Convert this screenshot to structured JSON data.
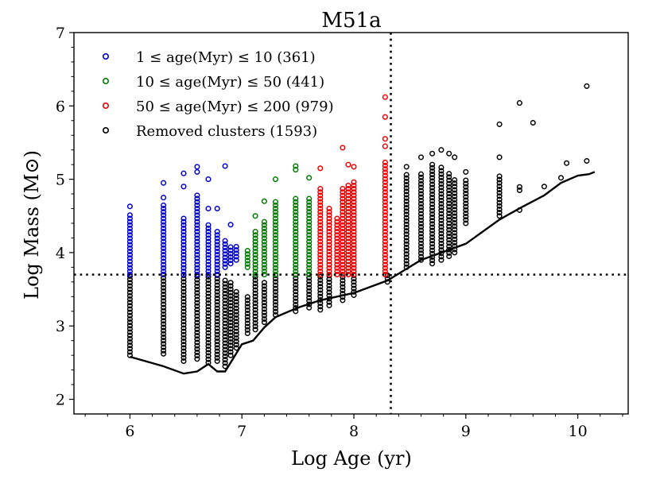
{
  "chart_data": {
    "type": "scatter",
    "title": "M51a",
    "xlabel": "Log Age (yr)",
    "ylabel": "Log Mass (M⊙)",
    "xlim": [
      5.5,
      10.45
    ],
    "ylim": [
      1.8,
      7.0
    ],
    "xticks": [
      6,
      7,
      8,
      9,
      10
    ],
    "xtick_labels": [
      "6",
      "7",
      "8",
      "9",
      "10"
    ],
    "yticks": [
      2,
      3,
      4,
      5,
      6,
      7
    ],
    "ytick_labels": [
      "2",
      "3",
      "4",
      "5",
      "6",
      "7"
    ],
    "legend_position": "top-left",
    "mass_cut": 3.7,
    "age_cut": 8.33,
    "series": [
      {
        "name": "1 ≤ age(Myr) ≤ 10 (361)",
        "color": "#0000cc",
        "columns": [
          {
            "x": 6.0,
            "ymin": 3.7,
            "ymax": 4.55,
            "top": [
              4.63
            ]
          },
          {
            "x": 6.3,
            "ymin": 3.7,
            "ymax": 4.65,
            "top": [
              4.75,
              4.95
            ]
          },
          {
            "x": 6.48,
            "ymin": 3.7,
            "ymax": 4.5,
            "top": [
              4.9,
              5.08
            ]
          },
          {
            "x": 6.6,
            "ymin": 3.7,
            "ymax": 4.8,
            "top": [
              5.1,
              5.17
            ]
          },
          {
            "x": 6.7,
            "ymin": 3.7,
            "ymax": 4.4,
            "top": [
              4.6,
              5.0
            ]
          },
          {
            "x": 6.78,
            "ymin": 3.7,
            "ymax": 4.3,
            "top": [
              4.6
            ]
          },
          {
            "x": 6.85,
            "ymin": 3.8,
            "ymax": 4.2,
            "top": [
              5.18
            ]
          },
          {
            "x": 6.9,
            "ymin": 3.85,
            "ymax": 4.1,
            "top": [
              4.38
            ]
          },
          {
            "x": 6.95,
            "ymin": 3.9,
            "ymax": 4.1,
            "top": []
          }
        ]
      },
      {
        "name": "10 ≤ age(Myr) ≤ 50 (441)",
        "color": "#007a00",
        "columns": [
          {
            "x": 7.05,
            "ymin": 3.8,
            "ymax": 4.05,
            "top": []
          },
          {
            "x": 7.12,
            "ymin": 3.7,
            "ymax": 4.3,
            "top": [
              4.5
            ]
          },
          {
            "x": 7.2,
            "ymin": 3.7,
            "ymax": 4.45,
            "top": [
              4.7
            ]
          },
          {
            "x": 7.3,
            "ymin": 3.7,
            "ymax": 4.7,
            "top": [
              5.0
            ]
          },
          {
            "x": 7.48,
            "ymin": 3.7,
            "ymax": 4.75,
            "top": [
              5.13,
              5.18
            ]
          },
          {
            "x": 7.6,
            "ymin": 3.7,
            "ymax": 4.75,
            "top": [
              5.02
            ]
          }
        ]
      },
      {
        "name": "50 ≤ age(Myr) ≤ 200 (979)",
        "color": "#ee0000",
        "columns": [
          {
            "x": 7.7,
            "ymin": 3.7,
            "ymax": 4.9,
            "top": [
              5.15
            ]
          },
          {
            "x": 7.78,
            "ymin": 3.7,
            "ymax": 4.6,
            "top": []
          },
          {
            "x": 7.85,
            "ymin": 3.7,
            "ymax": 4.5,
            "top": []
          },
          {
            "x": 7.9,
            "ymin": 3.7,
            "ymax": 4.9,
            "top": [
              5.43
            ]
          },
          {
            "x": 7.95,
            "ymin": 3.7,
            "ymax": 4.95,
            "top": [
              5.2
            ]
          },
          {
            "x": 8.0,
            "ymin": 3.7,
            "ymax": 5.0,
            "top": [
              5.17
            ]
          },
          {
            "x": 8.28,
            "ymin": 3.7,
            "ymax": 5.25,
            "top": [
              5.45,
              5.55,
              5.85,
              6.12
            ]
          }
        ]
      },
      {
        "name": "Removed clusters (1593)",
        "color": "#000000",
        "columns": [
          {
            "x": 6.0,
            "ymin": 2.6,
            "ymax": 3.7,
            "top": []
          },
          {
            "x": 6.3,
            "ymin": 2.62,
            "ymax": 3.7,
            "top": []
          },
          {
            "x": 6.48,
            "ymin": 2.52,
            "ymax": 3.7,
            "top": []
          },
          {
            "x": 6.6,
            "ymin": 2.55,
            "ymax": 3.7,
            "top": []
          },
          {
            "x": 6.7,
            "ymin": 2.5,
            "ymax": 3.7,
            "top": []
          },
          {
            "x": 6.78,
            "ymin": 2.52,
            "ymax": 3.7,
            "top": []
          },
          {
            "x": 6.85,
            "ymin": 2.45,
            "ymax": 3.65,
            "top": []
          },
          {
            "x": 6.9,
            "ymin": 2.6,
            "ymax": 3.6,
            "top": []
          },
          {
            "x": 6.95,
            "ymin": 2.7,
            "ymax": 3.5,
            "top": []
          },
          {
            "x": 7.05,
            "ymin": 2.9,
            "ymax": 3.4,
            "top": []
          },
          {
            "x": 7.12,
            "ymin": 2.95,
            "ymax": 3.7,
            "top": []
          },
          {
            "x": 7.2,
            "ymin": 3.05,
            "ymax": 3.6,
            "top": []
          },
          {
            "x": 7.3,
            "ymin": 3.15,
            "ymax": 3.7,
            "top": []
          },
          {
            "x": 7.48,
            "ymin": 3.2,
            "ymax": 3.7,
            "top": []
          },
          {
            "x": 7.6,
            "ymin": 3.25,
            "ymax": 3.7,
            "top": []
          },
          {
            "x": 7.7,
            "ymin": 3.22,
            "ymax": 3.7,
            "top": []
          },
          {
            "x": 7.78,
            "ymin": 3.28,
            "ymax": 3.7,
            "top": []
          },
          {
            "x": 7.9,
            "ymin": 3.35,
            "ymax": 3.7,
            "top": []
          },
          {
            "x": 8.0,
            "ymin": 3.42,
            "ymax": 3.7,
            "top": []
          },
          {
            "x": 8.3,
            "ymin": 3.6,
            "ymax": 3.7,
            "top": []
          },
          {
            "x": 8.47,
            "ymin": 3.8,
            "ymax": 5.1,
            "top": [
              5.17
            ]
          },
          {
            "x": 8.6,
            "ymin": 3.9,
            "ymax": 5.1,
            "top": [
              5.3
            ]
          },
          {
            "x": 8.7,
            "ymin": 3.85,
            "ymax": 5.2,
            "top": [
              5.35
            ]
          },
          {
            "x": 8.78,
            "ymin": 3.9,
            "ymax": 5.2,
            "top": [
              5.4
            ]
          },
          {
            "x": 8.85,
            "ymin": 3.95,
            "ymax": 5.1,
            "top": [
              5.35
            ]
          },
          {
            "x": 8.9,
            "ymin": 4.0,
            "ymax": 5.0,
            "top": [
              5.3
            ]
          },
          {
            "x": 9.0,
            "ymin": 4.4,
            "ymax": 5.0,
            "top": [
              5.1
            ]
          },
          {
            "x": 9.3,
            "ymin": 4.5,
            "ymax": 5.05,
            "top": [
              5.3,
              5.75
            ]
          },
          {
            "x": 9.48,
            "ymin": 4.85,
            "ymax": 4.9,
            "top": [
              4.58,
              6.04
            ]
          },
          {
            "x": 9.6,
            "ymin": 5.77,
            "ymax": 5.77,
            "top": []
          },
          {
            "x": 9.7,
            "ymin": 4.9,
            "ymax": 4.9,
            "top": []
          },
          {
            "x": 9.85,
            "ymin": 5.02,
            "ymax": 5.02,
            "top": []
          },
          {
            "x": 9.9,
            "ymin": 5.22,
            "ymax": 5.22,
            "top": []
          },
          {
            "x": 10.08,
            "ymin": 5.25,
            "ymax": 5.25,
            "top": [
              6.27
            ]
          }
        ]
      }
    ],
    "lower_limit_curve": {
      "x": [
        6.0,
        6.3,
        6.48,
        6.6,
        6.7,
        6.78,
        6.85,
        6.92,
        7.0,
        7.1,
        7.2,
        7.3,
        7.5,
        7.7,
        8.0,
        8.3,
        8.6,
        9.0,
        9.3,
        9.5,
        9.7,
        9.85,
        10.0,
        10.1,
        10.15
      ],
      "y": [
        2.58,
        2.45,
        2.35,
        2.38,
        2.48,
        2.38,
        2.38,
        2.55,
        2.75,
        2.8,
        2.98,
        3.12,
        3.25,
        3.35,
        3.45,
        3.62,
        3.9,
        4.12,
        4.45,
        4.62,
        4.78,
        4.95,
        5.05,
        5.07,
        5.1
      ]
    }
  }
}
